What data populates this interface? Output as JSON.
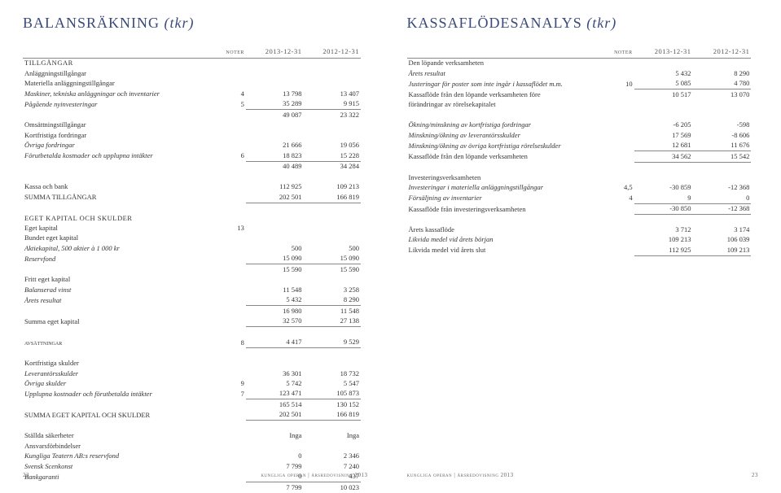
{
  "left": {
    "title_main": "BALANSRÄKNING",
    "title_sub": "(tkr)",
    "headers": {
      "noter": "noter",
      "y1": "2013-12-31",
      "y2": "2012-12-31"
    },
    "rows": [
      {
        "type": "section",
        "label": "TILLGÅNGAR"
      },
      {
        "type": "plain",
        "label": "Anläggningstillgångar"
      },
      {
        "type": "plain",
        "label": "Materiella anläggningstillgångar"
      },
      {
        "type": "ital",
        "label": "Maskiner, tekniska anläggningar och inventarier",
        "note": "4",
        "v1": "13 798",
        "v2": "13 407"
      },
      {
        "type": "ital sum",
        "label": "Pågående nyinvesteringar",
        "note": "5",
        "v1": "35 289",
        "v2": "9 915"
      },
      {
        "type": "sumline",
        "v1": "49 087",
        "v2": "23 322"
      },
      {
        "type": "plain",
        "label": "Omsättningstillgångar"
      },
      {
        "type": "plain",
        "label": "Kortfristiga fordringar"
      },
      {
        "type": "ital",
        "label": "Övriga fordringar",
        "v1": "21 666",
        "v2": "19 056"
      },
      {
        "type": "ital sum",
        "label": "Förutbetalda kostnader och upplupna intäkter",
        "note": "6",
        "v1": "18 823",
        "v2": "15 228"
      },
      {
        "type": "sumline",
        "v1": "40 489",
        "v2": "34 284"
      },
      {
        "type": "gap"
      },
      {
        "type": "plain",
        "label": "Kassa och bank",
        "v1": "112 925",
        "v2": "109 213"
      },
      {
        "type": "plain sum",
        "label": "SUMMA TILLGÅNGAR",
        "v1": "202 501",
        "v2": "166 819"
      },
      {
        "type": "gap"
      },
      {
        "type": "section",
        "label": "EGET KAPITAL OCH SKULDER"
      },
      {
        "type": "plain",
        "label": "Eget kapital",
        "note": "13"
      },
      {
        "type": "plain",
        "label": "Bundet eget kapital"
      },
      {
        "type": "ital",
        "label": "Aktiekapital, 500 aktier à 1 000 kr",
        "v1": "500",
        "v2": "500"
      },
      {
        "type": "ital sum",
        "label": "Reservfond",
        "v1": "15 090",
        "v2": "15 090"
      },
      {
        "type": "sumline",
        "v1": "15 590",
        "v2": "15 590"
      },
      {
        "type": "plain",
        "label": "Fritt eget kapital"
      },
      {
        "type": "ital",
        "label": "Balanserad vinst",
        "v1": "11 548",
        "v2": "3 258"
      },
      {
        "type": "ital sum",
        "label": "Årets resultat",
        "v1": "5 432",
        "v2": "8 290"
      },
      {
        "type": "sumline",
        "v1": "16 980",
        "v2": "11 548"
      },
      {
        "type": "plain sum",
        "label": "Summa eget kapital",
        "v1": "32 570",
        "v2": "27 138"
      },
      {
        "type": "gap"
      },
      {
        "type": "smallcaps sum",
        "label": "avsättningar",
        "note": "8",
        "v1": "4 417",
        "v2": "9 529"
      },
      {
        "type": "gap"
      },
      {
        "type": "plain",
        "label": "Kortfristiga skulder"
      },
      {
        "type": "ital",
        "label": "Leverantörsskulder",
        "v1": "36 301",
        "v2": "18 732"
      },
      {
        "type": "ital",
        "label": "Övriga skulder",
        "note": "9",
        "v1": "5 742",
        "v2": "5 547"
      },
      {
        "type": "ital sum",
        "label": "Upplupna kostnader och förutbetalda intäkter",
        "note": "7",
        "v1": "123 471",
        "v2": "105 873"
      },
      {
        "type": "sumline",
        "v1": "165 514",
        "v2": "130 152"
      },
      {
        "type": "plain sum",
        "label": "SUMMA EGET KAPITAL OCH SKULDER",
        "v1": "202 501",
        "v2": "166 819"
      },
      {
        "type": "gap"
      },
      {
        "type": "plain",
        "label": "Ställda säkerheter",
        "v1": "Inga",
        "v2": "Inga"
      },
      {
        "type": "plain",
        "label": "Ansvarsförbindelser"
      },
      {
        "type": "ital",
        "label": "Kungliga Teatern AB:s reservfond",
        "v1": "0",
        "v2": "2 346"
      },
      {
        "type": "ital",
        "label": "Svensk Scenkonst",
        "v1": "7 799",
        "v2": "7 240"
      },
      {
        "type": "ital sum",
        "label": "Bankgaranti",
        "v1": "0",
        "v2": "437"
      },
      {
        "type": "sumline",
        "v1": "7 799",
        "v2": "10 023"
      }
    ],
    "footer_pg": "22",
    "footer_text": "kungliga operan | årsredovisning 2013"
  },
  "right": {
    "title_main": "KASSAFLÖDESANALYS",
    "title_sub": "(tkr)",
    "headers": {
      "noter": "noter",
      "y1": "2013-12-31",
      "y2": "2012-12-31"
    },
    "rows": [
      {
        "type": "plain",
        "label": "Den löpande verksamheten"
      },
      {
        "type": "ital",
        "label": "Årets resultat",
        "v1": "5 432",
        "v2": "8 290"
      },
      {
        "type": "ital sum",
        "label": "Justeringar för poster som inte ingår i kassaflödet m.m.",
        "note": "10",
        "v1": "5 085",
        "v2": "4 780"
      },
      {
        "type": "plain",
        "label": "Kassaflöde från den löpande verksamheten före",
        "v1": "10 517",
        "v2": "13 070"
      },
      {
        "type": "plain",
        "label": "förändringar av rörelsekapitalet"
      },
      {
        "type": "gap"
      },
      {
        "type": "ital",
        "label": "Ökning/minskning av kortfristiga fordringar",
        "v1": "-6 205",
        "v2": "-598"
      },
      {
        "type": "ital",
        "label": "Minskning/ökning av leverantörsskulder",
        "v1": "17 569",
        "v2": "-8 606"
      },
      {
        "type": "ital sum",
        "label": "Minskning/ökning av övriga kortfristiga rörelseskulder",
        "v1": "12 681",
        "v2": "11 676"
      },
      {
        "type": "plain sum",
        "label": "Kassaflöde från den löpande verksamheten",
        "v1": "34 562",
        "v2": "15 542"
      },
      {
        "type": "gap"
      },
      {
        "type": "plain",
        "label": "Investeringsverksamheten"
      },
      {
        "type": "ital",
        "label": "Investeringar i materiella anläggningstillgångar",
        "note": "4,5",
        "v1": "-30 859",
        "v2": "-12 368"
      },
      {
        "type": "ital sum",
        "label": "Försäljning av inventarier",
        "note": "4",
        "v1": "9",
        "v2": "0"
      },
      {
        "type": "plain sum",
        "label": "Kassaflöde från investeringsverksamheten",
        "v1": "-30 850",
        "v2": "-12 368"
      },
      {
        "type": "gap"
      },
      {
        "type": "plain",
        "label": "Årets kassaflöde",
        "v1": "3 712",
        "v2": "3 174"
      },
      {
        "type": "ital",
        "label": "Likvida medel vid årets början",
        "v1": "109 213",
        "v2": "106 039"
      },
      {
        "type": "plain sum",
        "label": "Likvida medel vid årets slut",
        "v1": "112 925",
        "v2": "109 213"
      }
    ],
    "footer_pg": "23",
    "footer_text": "kungliga operan | årsredovisning 2013"
  }
}
